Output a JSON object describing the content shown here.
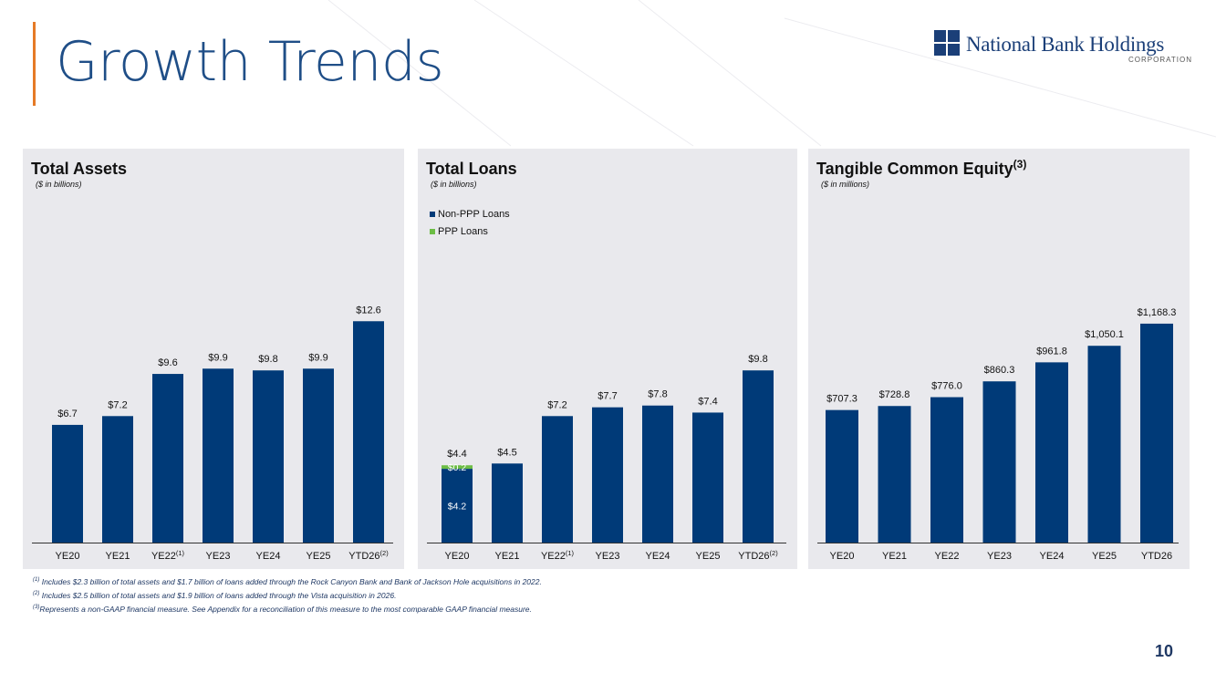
{
  "page": {
    "title": "Growth Trends",
    "page_number": "10",
    "accent_color": "#e57a26",
    "bar_color": "#003a78",
    "ppp_color": "#6cbd45",
    "logo": {
      "name": "National Bank Holdings",
      "sub": "CORPORATION"
    }
  },
  "footnotes": [
    {
      "mark": "(1)",
      "text": " Includes $2.3 billion of total assets and $1.7 billion of loans added through the Rock Canyon Bank and Bank of Jackson Hole acquisitions in 2022."
    },
    {
      "mark": "(2)",
      "text": " Includes $2.5 billion of total assets and $1.9 billion of loans added through the Vista acquisition in 2026."
    },
    {
      "mark": "(3)",
      "text": "Represents a non-GAAP financial measure.  See Appendix for a reconciliation of this measure to the most comparable GAAP financial measure."
    }
  ],
  "chart_data": [
    {
      "type": "bar",
      "title": "Total Assets",
      "title_sup": "",
      "subtitle": "($ in billions)",
      "categories": [
        "YE20",
        "YE21",
        "YE22",
        "YE23",
        "YE24",
        "YE25",
        "YTD26"
      ],
      "category_sups": [
        "",
        "",
        "(1)",
        "",
        "",
        "",
        "(2)"
      ],
      "values": [
        6.7,
        7.2,
        9.6,
        9.9,
        9.8,
        9.9,
        12.6
      ],
      "labels": [
        "$6.7",
        "$7.2",
        "$9.6",
        "$9.9",
        "$9.8",
        "$9.9",
        "$12.6"
      ],
      "ylim": [
        0,
        13.6
      ]
    },
    {
      "type": "bar",
      "stacked": true,
      "title": "Total Loans",
      "title_sup": "",
      "subtitle": "($ in billions)",
      "categories": [
        "YE20",
        "YE21",
        "YE22",
        "YE23",
        "YE24",
        "YE25",
        "YTD26"
      ],
      "category_sups": [
        "",
        "",
        "(1)",
        "",
        "",
        "",
        "(2)"
      ],
      "legend": [
        "Non-PPP Loans",
        "PPP Loans"
      ],
      "series": [
        {
          "name": "Non-PPP Loans",
          "values": [
            4.2,
            4.5,
            7.2,
            7.7,
            7.8,
            7.4,
            9.8
          ],
          "color": "#003a78",
          "labels": [
            "$4.2",
            "",
            "",
            "",
            "",
            "",
            ""
          ]
        },
        {
          "name": "PPP Loans",
          "values": [
            0.2,
            0,
            0,
            0,
            0,
            0,
            0
          ],
          "color": "#6cbd45",
          "labels": [
            "$0.2",
            "",
            "",
            "",
            "",
            "",
            ""
          ]
        }
      ],
      "totals": [
        "$4.4",
        "$4.5",
        "$7.2",
        "$7.7",
        "$7.8",
        "$7.4",
        "$9.8"
      ],
      "ylim": [
        0,
        13.6
      ]
    },
    {
      "type": "bar",
      "title": "Tangible Common Equity",
      "title_sup": "(3)",
      "subtitle": "($ in millions)",
      "categories": [
        "YE20",
        "YE21",
        "YE22",
        "YE23",
        "YE24",
        "YE25",
        "YTD26"
      ],
      "category_sups": [
        "",
        "",
        "",
        "",
        "",
        "",
        ""
      ],
      "values": [
        707.3,
        728.8,
        776.0,
        860.3,
        961.8,
        1050.1,
        1168.3
      ],
      "labels": [
        "$707.3",
        "$728.8",
        "$776.0",
        "$860.3",
        "$961.8",
        "$1,050.1",
        "$1,168.3"
      ],
      "ylim": [
        0,
        1275
      ]
    }
  ]
}
